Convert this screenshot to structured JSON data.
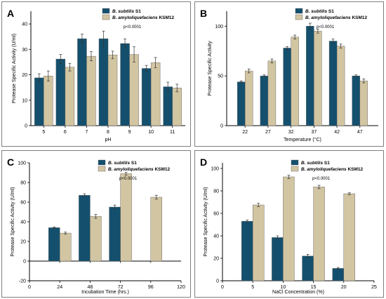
{
  "colors": {
    "series_subtilis": "#14506e",
    "series_amylo": "#d2c5a2",
    "border": "#7f7f7f"
  },
  "chart_data": [
    {
      "panel": "A",
      "type": "bar",
      "xlabel": "pH",
      "ylabel": "",
      "pvalue": "p<0.0001",
      "categories": [
        "5",
        "6",
        "7",
        "8",
        "9",
        "10",
        "11"
      ],
      "x_positions": [
        5,
        6,
        7,
        8,
        9,
        10,
        11
      ],
      "xlim": [
        4.4,
        11.6
      ],
      "ylim": [
        0,
        45
      ],
      "yticks": [
        0,
        10,
        20,
        30,
        40
      ],
      "legend_position": "top-right",
      "legend": [
        {
          "italic": "B. subtilis",
          "rest": " S1"
        },
        {
          "italic": "B. amyloliquefaciens",
          "rest": " KSM12"
        }
      ],
      "series": [
        {
          "name": "B. subtilis S1",
          "values": [
            18.8,
            26.2,
            34.2,
            34.2,
            32.3,
            22.5,
            15.3
          ],
          "errors": [
            1.6,
            1.8,
            1.8,
            3.0,
            1.8,
            1.2,
            1.8
          ]
        },
        {
          "name": "B. amyloliquefaciens KSM12",
          "values": [
            19.5,
            23.0,
            27.3,
            27.8,
            28.0,
            24.8,
            14.8
          ],
          "errors": [
            2.0,
            1.5,
            1.8,
            1.5,
            3.0,
            2.0,
            1.5
          ]
        }
      ]
    },
    {
      "panel": "B",
      "type": "bar",
      "xlabel": "Temperature (°C)",
      "ylabel": "Protease Specific Activity",
      "pvalue": "p<0.0001",
      "categories": [
        "22",
        "27",
        "32",
        "37",
        "42",
        "47"
      ],
      "x_positions": [
        22,
        27,
        32,
        37,
        42,
        47
      ],
      "xlim": [
        18,
        51
      ],
      "ylim": [
        0,
        115
      ],
      "yticks": [
        0,
        50,
        100
      ],
      "legend_position": "top-right",
      "legend": [
        {
          "italic": "B. subtilis",
          "rest": " S1"
        },
        {
          "italic": "B. amyloliquefaciens",
          "rest": " KSM12"
        }
      ],
      "series": [
        {
          "name": "B. subtilis S1",
          "values": [
            44,
            50,
            78,
            100,
            85,
            50
          ],
          "errors": [
            1.0,
            1.0,
            1.5,
            3.0,
            2.0,
            1.0
          ]
        },
        {
          "name": "B. amyloliquefaciens KSM12",
          "values": [
            55,
            65,
            89,
            95,
            80,
            45
          ],
          "errors": [
            2.0,
            2.0,
            2.0,
            2.0,
            2.0,
            2.0
          ]
        }
      ]
    },
    {
      "panel": "C",
      "type": "bar",
      "xlabel": "Incubation Time (hrs.)",
      "ylabel": "Protease Specific Activity (U/ml)",
      "pvalue": "p<0.0001",
      "categories": [
        "24",
        "48",
        "72",
        "96"
      ],
      "x_positions": [
        24,
        48,
        72,
        96
      ],
      "xticks": [
        0,
        24,
        48,
        72,
        96,
        120
      ],
      "xlim": [
        0,
        120
      ],
      "ylim": [
        -20,
        100
      ],
      "yticks": [
        -20,
        0,
        20,
        40,
        60,
        80,
        100
      ],
      "legend_position": "top-right",
      "legend": [
        {
          "italic": "B. subtilis",
          "rest": " S1"
        },
        {
          "italic": "B. amyloliquefaciens",
          "rest": " KSM12"
        }
      ],
      "series": [
        {
          "name": "B. subtilis S1",
          "values": [
            34,
            67,
            55,
            null
          ],
          "errors": [
            0.8,
            1.5,
            2.0,
            0
          ]
        },
        {
          "name": "B. amyloliquefaciens KSM12",
          "values": [
            28.5,
            45.5,
            89,
            65
          ],
          "errors": [
            1.0,
            2.0,
            1.5,
            2.0
          ]
        }
      ]
    },
    {
      "panel": "D",
      "type": "bar",
      "xlabel": "NaCl Concentration (%)",
      "ylabel": "Protease Specific Activity (U/ml)",
      "pvalue": "p<0.0001",
      "categories": [
        "5",
        "10",
        "15",
        "20"
      ],
      "x_positions": [
        5,
        10,
        15,
        20
      ],
      "xticks": [
        0,
        5,
        10,
        15,
        20,
        25
      ],
      "xlim": [
        0,
        25
      ],
      "ylim": [
        0,
        105
      ],
      "yticks": [
        0,
        20,
        40,
        60,
        80,
        100
      ],
      "legend_position": "top-right",
      "legend": [
        {
          "italic": "B. subtilis",
          "rest": " S1"
        },
        {
          "italic": "B. amyloliquefaciens",
          "rest": " KSM12"
        }
      ],
      "series": [
        {
          "name": "B. subtilis S1",
          "values": [
            53,
            38.5,
            22,
            11
          ],
          "errors": [
            1.0,
            1.5,
            1.5,
            0.8
          ]
        },
        {
          "name": "B. amyloliquefaciens KSM12",
          "values": [
            67.5,
            92.5,
            83.5,
            77.5
          ],
          "errors": [
            1.5,
            1.5,
            1.5,
            0.8
          ]
        }
      ]
    }
  ],
  "y_unit_A": "(U/ml)",
  "ylabel_A": "Protease Specific Activity"
}
